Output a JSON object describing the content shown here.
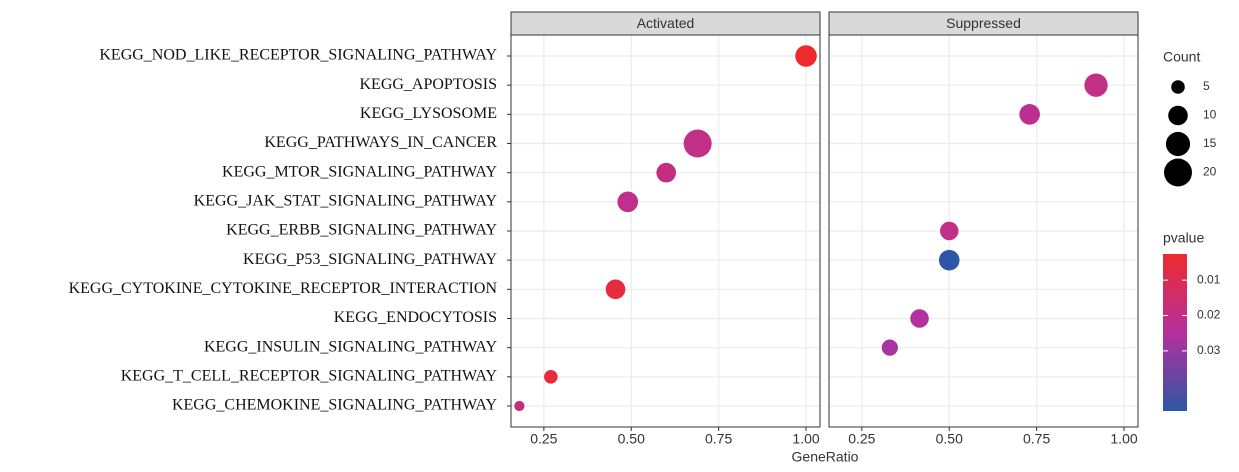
{
  "chart_data": {
    "type": "dotplot",
    "categories": [
      "KEGG_NOD_LIKE_RECEPTOR_SIGNALING_PATHWAY",
      "KEGG_APOPTOSIS",
      "KEGG_LYSOSOME",
      "KEGG_PATHWAYS_IN_CANCER",
      "KEGG_MTOR_SIGNALING_PATHWAY",
      "KEGG_JAK_STAT_SIGNALING_PATHWAY",
      "KEGG_ERBB_SIGNALING_PATHWAY",
      "KEGG_P53_SIGNALING_PATHWAY",
      "KEGG_CYTOKINE_CYTOKINE_RECEPTOR_INTERACTION",
      "KEGG_ENDOCYTOSIS",
      "KEGG_INSULIN_SIGNALING_PATHWAY",
      "KEGG_T_CELL_RECEPTOR_SIGNALING_PATHWAY",
      "KEGG_CHEMOKINE_SIGNALING_PATHWAY"
    ],
    "facets": [
      {
        "title": "Activated",
        "values": [
          1.0,
          null,
          null,
          0.69,
          0.6,
          0.49,
          null,
          null,
          0.455,
          null,
          null,
          0.27,
          0.18
        ],
        "counts": [
          12,
          null,
          null,
          20,
          10,
          11,
          null,
          null,
          10,
          null,
          null,
          5,
          3
        ],
        "pvalues": [
          0.0026,
          null,
          null,
          0.02,
          0.019,
          0.021,
          null,
          null,
          0.006,
          null,
          null,
          0.005,
          0.018
        ]
      },
      {
        "title": "Suppressed",
        "values": [
          null,
          0.92,
          0.73,
          null,
          null,
          null,
          0.5,
          0.5,
          null,
          0.415,
          0.33,
          null,
          null
        ],
        "counts": [
          null,
          14,
          11,
          null,
          null,
          null,
          9,
          11,
          null,
          9,
          7,
          null,
          null
        ],
        "pvalues": [
          null,
          0.02,
          0.022,
          null,
          null,
          null,
          0.02,
          0.047,
          null,
          0.025,
          0.027,
          null,
          null
        ]
      }
    ],
    "xlabel": "GeneRatio",
    "xlim": [
      0.156,
      1.04
    ],
    "xticks": [
      {
        "value": 0.25,
        "label": "0.25"
      },
      {
        "value": 0.5,
        "label": "0.50"
      },
      {
        "value": 0.75,
        "label": "0.75"
      },
      {
        "value": 1.0,
        "label": "1.00"
      }
    ],
    "grid": true,
    "size_legend": {
      "title": "Count",
      "ticks": [
        5,
        10,
        15,
        20
      ],
      "range": [
        2,
        20
      ]
    },
    "color_legend": {
      "title": "pvalue",
      "ticks": [
        0.01,
        0.02,
        0.03
      ],
      "range": [
        0.0026,
        0.047
      ],
      "colors": [
        "#ee2a2e",
        "#b5309e",
        "#2d56a5"
      ]
    }
  }
}
